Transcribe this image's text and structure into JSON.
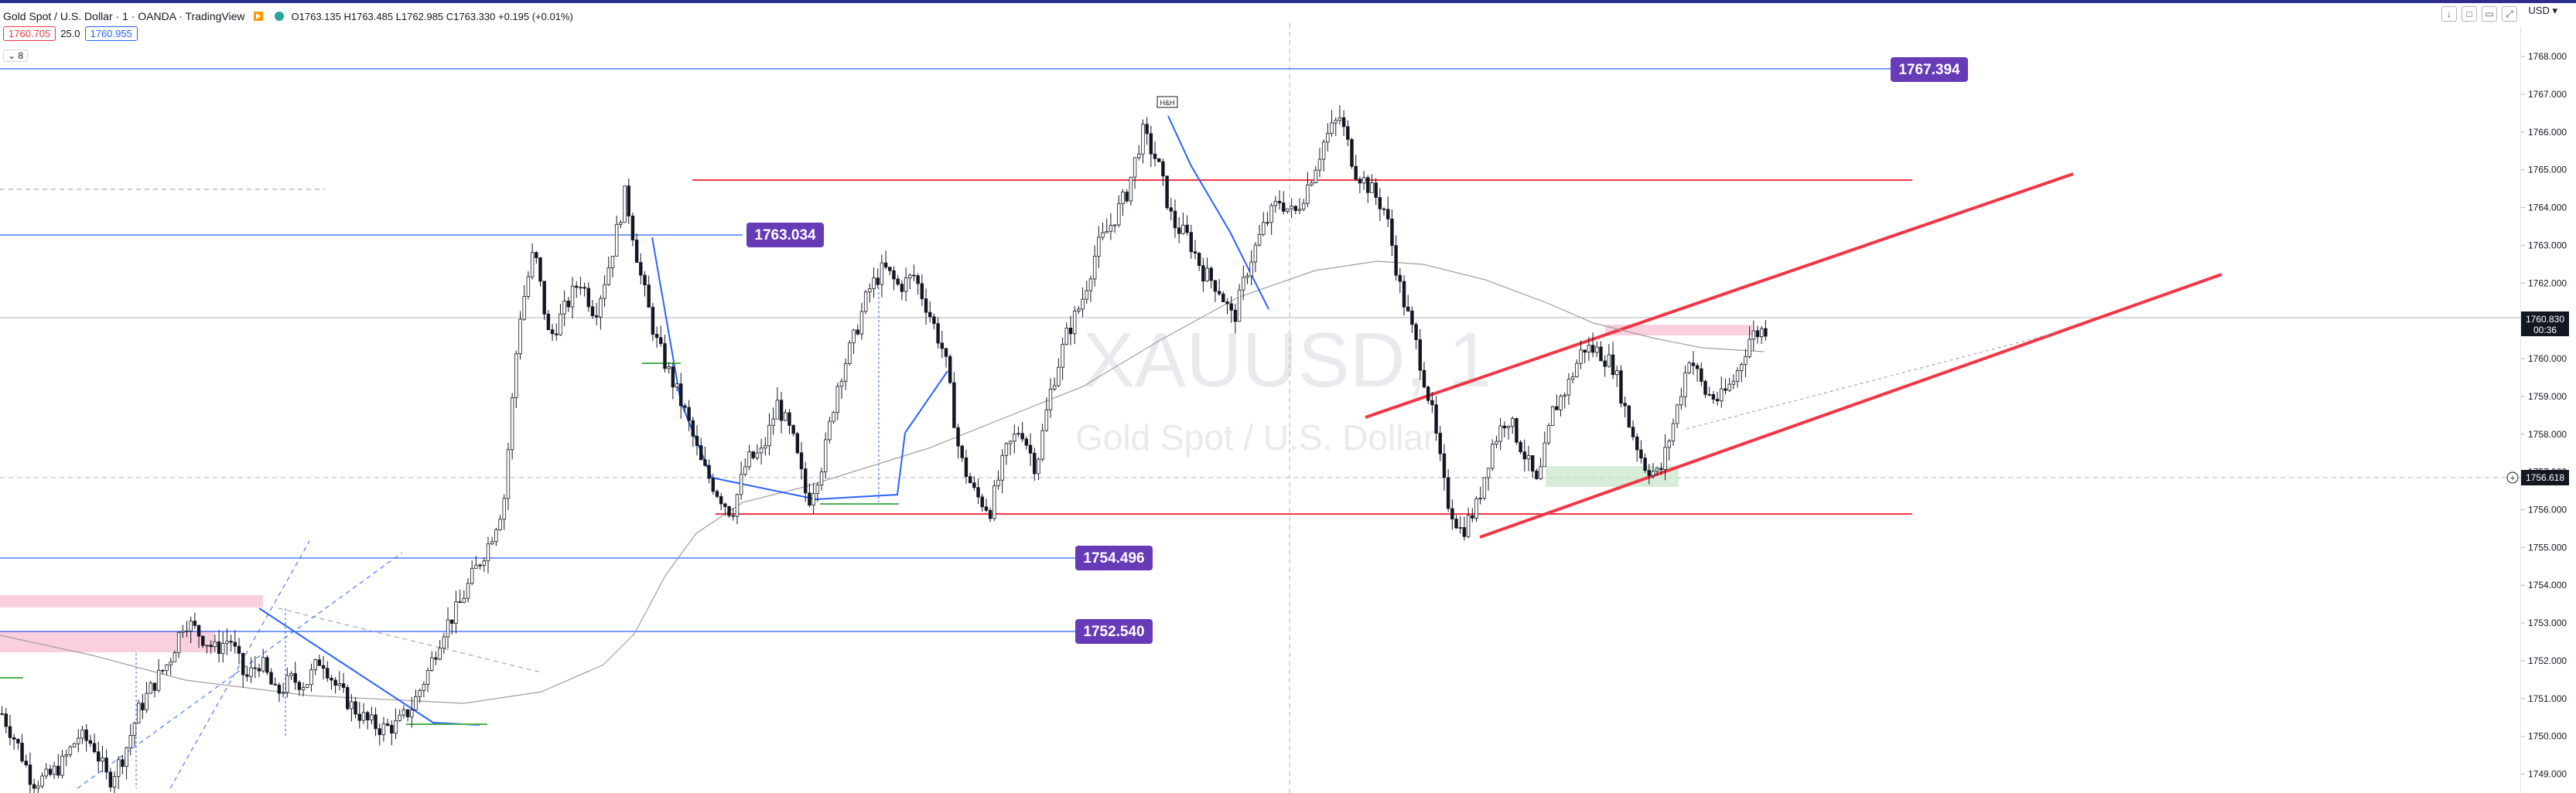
{
  "header": {
    "title": "Gold Spot / U.S. Dollar · 1 · OANDA · TradingView",
    "ohlc": "O1763.135 H1763.485 L1762.985 C1763.330 +0.195 (+0.01%)"
  },
  "quote": {
    "bid": "1760.705",
    "spread": "25.0",
    "ask": "1760.955"
  },
  "indicator_toggle": "⌄ 8",
  "currency": "USD ▾",
  "watermark": {
    "symbol": "XAUUSD, 1",
    "name": "Gold Spot / U.S. Dollar"
  },
  "colors": {
    "up": "#ffffff",
    "down": "#131722",
    "resistance": "#f23645",
    "level": "#2962ff",
    "badge": "#673ab7",
    "axis_text": "#131722"
  },
  "chart_data": {
    "type": "candlestick",
    "ylim": [
      1748.5,
      1768.8
    ],
    "yticks": [
      "1768.000",
      "1767.000",
      "1766.000",
      "1765.000",
      "1764.000",
      "1763.000",
      "1762.000",
      "1761.000",
      "1760.000",
      "1759.000",
      "1758.000",
      "1757.000",
      "1756.000",
      "1755.000",
      "1754.000",
      "1753.000",
      "1752.000",
      "1751.000",
      "1750.000",
      "1749.000"
    ],
    "last_price": "1760.830",
    "countdown": "00:36",
    "crosshair_price": "1756.618",
    "level_badges": [
      "1767.394",
      "1763.034",
      "1754.496",
      "1752.540"
    ],
    "pattern_label": "H&H",
    "price_path": [
      1750.6,
      1749.8,
      1748.8,
      1748.9,
      1749.3,
      1750.0,
      1749.8,
      1748.8,
      1749.5,
      1750.7,
      1751.4,
      1752.0,
      1753.1,
      1752.7,
      1752.3,
      1752.6,
      1751.5,
      1752.0,
      1751.1,
      1751.5,
      1751.4,
      1752.1,
      1751.3,
      1750.8,
      1750.4,
      1750.2,
      1750.3,
      1750.8,
      1751.7,
      1752.8,
      1753.4,
      1754.3,
      1755.1,
      1756.2,
      1761.0,
      1762.9,
      1760.5,
      1761.3,
      1762.1,
      1761.2,
      1762.6,
      1764.4,
      1762.2,
      1760.5,
      1759.5,
      1758.5,
      1757.2,
      1756.5,
      1755.9,
      1757.3,
      1757.5,
      1758.8,
      1757.9,
      1756.2,
      1757.3,
      1759.4,
      1760.5,
      1761.8,
      1762.4,
      1761.9,
      1762.2,
      1761.2,
      1760.1,
      1757.4,
      1756.4,
      1756.0,
      1757.5,
      1758.2,
      1757.1,
      1759.2,
      1760.6,
      1761.5,
      1762.9,
      1763.6,
      1764.4,
      1766.0,
      1765.2,
      1763.6,
      1763.2,
      1762.3,
      1761.9,
      1761.0,
      1762.5,
      1763.5,
      1764.2,
      1763.8,
      1764.7,
      1765.8,
      1766.4,
      1765.0,
      1764.5,
      1763.9,
      1761.8,
      1760.4,
      1758.7,
      1756.3,
      1755.4,
      1756.1,
      1757.7,
      1758.5,
      1757.6,
      1756.6,
      1758.6,
      1759.3,
      1760.3,
      1760.2,
      1759.8,
      1758.3,
      1757.2,
      1756.9,
      1758.4,
      1760.1,
      1759.1,
      1758.9,
      1759.5,
      1760.6,
      1760.8
    ]
  }
}
